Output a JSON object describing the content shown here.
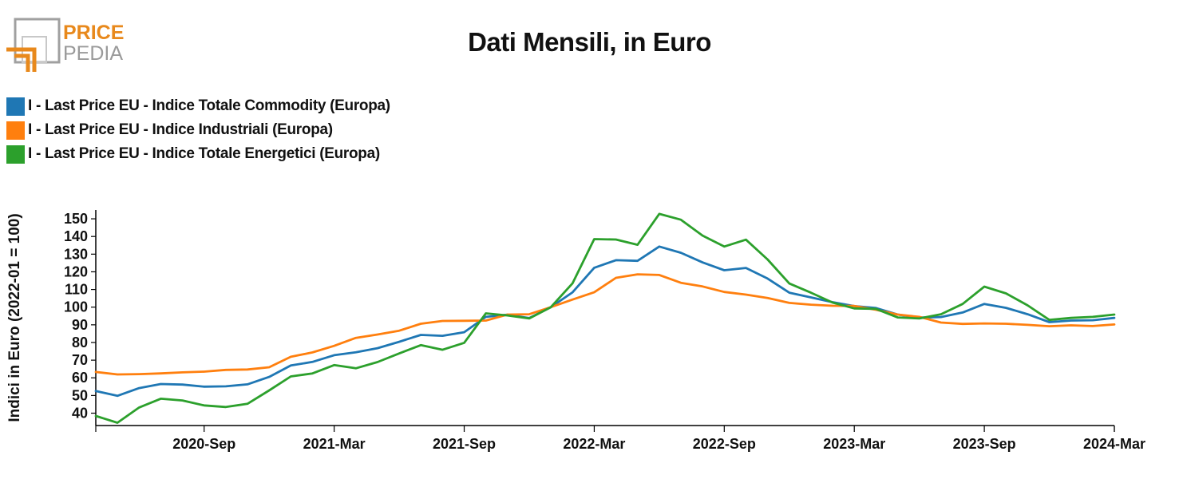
{
  "logo": {
    "line1": "PRICE",
    "line2": "PEDIA",
    "colors": {
      "orange": "#e8891c",
      "gray": "#9a9a9a"
    }
  },
  "chart_data": {
    "type": "line",
    "title": "Dati Mensili, in Euro",
    "xlabel": "",
    "ylabel": "Indici in Euro (2022-01 = 100)",
    "ylim": [
      33,
      155
    ],
    "yticks": [
      40,
      50,
      60,
      70,
      80,
      90,
      100,
      110,
      120,
      130,
      140,
      150
    ],
    "x": [
      "2020-04",
      "2020-05",
      "2020-06",
      "2020-07",
      "2020-08",
      "2020-09",
      "2020-10",
      "2020-11",
      "2020-12",
      "2021-01",
      "2021-02",
      "2021-03",
      "2021-04",
      "2021-05",
      "2021-06",
      "2021-07",
      "2021-08",
      "2021-09",
      "2021-10",
      "2021-11",
      "2021-12",
      "2022-01",
      "2022-02",
      "2022-03",
      "2022-04",
      "2022-05",
      "2022-06",
      "2022-07",
      "2022-08",
      "2022-09",
      "2022-10",
      "2022-11",
      "2022-12",
      "2023-01",
      "2023-02",
      "2023-03",
      "2023-04",
      "2023-05",
      "2023-06",
      "2023-07",
      "2023-08",
      "2023-09",
      "2023-10",
      "2023-11",
      "2023-12",
      "2024-01",
      "2024-02",
      "2024-03"
    ],
    "xticks": [
      {
        "at": "2020-09",
        "label": "2020-Sep"
      },
      {
        "at": "2021-03",
        "label": "2021-Mar"
      },
      {
        "at": "2021-09",
        "label": "2021-Sep"
      },
      {
        "at": "2022-03",
        "label": "2022-Mar"
      },
      {
        "at": "2022-09",
        "label": "2022-Sep"
      },
      {
        "at": "2023-03",
        "label": "2023-Mar"
      },
      {
        "at": "2023-09",
        "label": "2023-Sep"
      },
      {
        "at": "2024-03",
        "label": "2024-Mar"
      }
    ],
    "legend_position": "top-left",
    "series": [
      {
        "name": "I - Last Price EU - Indice Totale Commodity (Europa)",
        "color": "#1f77b4",
        "values": [
          52.5,
          49.8,
          54.2,
          56.5,
          56.2,
          55.0,
          55.2,
          56.3,
          60.5,
          67.0,
          69.0,
          72.8,
          74.5,
          76.8,
          80.4,
          84.3,
          83.8,
          85.8,
          94.5,
          95.7,
          93.8,
          100.0,
          108.4,
          122.3,
          126.6,
          126.2,
          134.3,
          130.8,
          125.3,
          120.9,
          122.2,
          116.2,
          108.2,
          105.5,
          102.8,
          100.6,
          99.5,
          95.8,
          94.1,
          94.4,
          97.0,
          101.8,
          99.6,
          96.0,
          91.5,
          92.4,
          92.6,
          93.9
        ]
      },
      {
        "name": "I - Last Price EU - Indice Industriali (Europa)",
        "color": "#ff7f0e",
        "values": [
          63.3,
          61.9,
          62.1,
          62.5,
          63.1,
          63.5,
          64.5,
          64.7,
          66.0,
          71.9,
          74.4,
          78.1,
          82.6,
          84.5,
          86.7,
          90.6,
          92.2,
          92.3,
          92.4,
          95.8,
          96.0,
          100.0,
          104.3,
          108.4,
          116.6,
          118.6,
          118.2,
          113.8,
          111.7,
          108.6,
          107.1,
          105.2,
          102.4,
          101.4,
          100.8,
          100.7,
          98.5,
          95.8,
          94.5,
          91.3,
          90.5,
          90.8,
          90.6,
          90.0,
          89.2,
          89.7,
          89.3,
          90.2
        ]
      },
      {
        "name": "I - Last Price EU - Indice Totale Energetici (Europa)",
        "color": "#2ca02c",
        "values": [
          38.4,
          34.6,
          43.2,
          48.2,
          47.2,
          44.4,
          43.5,
          45.3,
          52.9,
          60.8,
          62.5,
          67.2,
          65.4,
          68.9,
          73.8,
          78.5,
          75.9,
          79.8,
          96.5,
          95.3,
          93.6,
          100.0,
          113.5,
          138.5,
          138.3,
          135.3,
          152.8,
          149.5,
          140.5,
          134.3,
          138.2,
          127.0,
          113.4,
          108.2,
          102.6,
          99.3,
          99.0,
          94.2,
          93.6,
          96.0,
          101.8,
          111.6,
          107.8,
          101.0,
          92.8,
          93.9,
          94.5,
          95.8
        ]
      }
    ]
  }
}
